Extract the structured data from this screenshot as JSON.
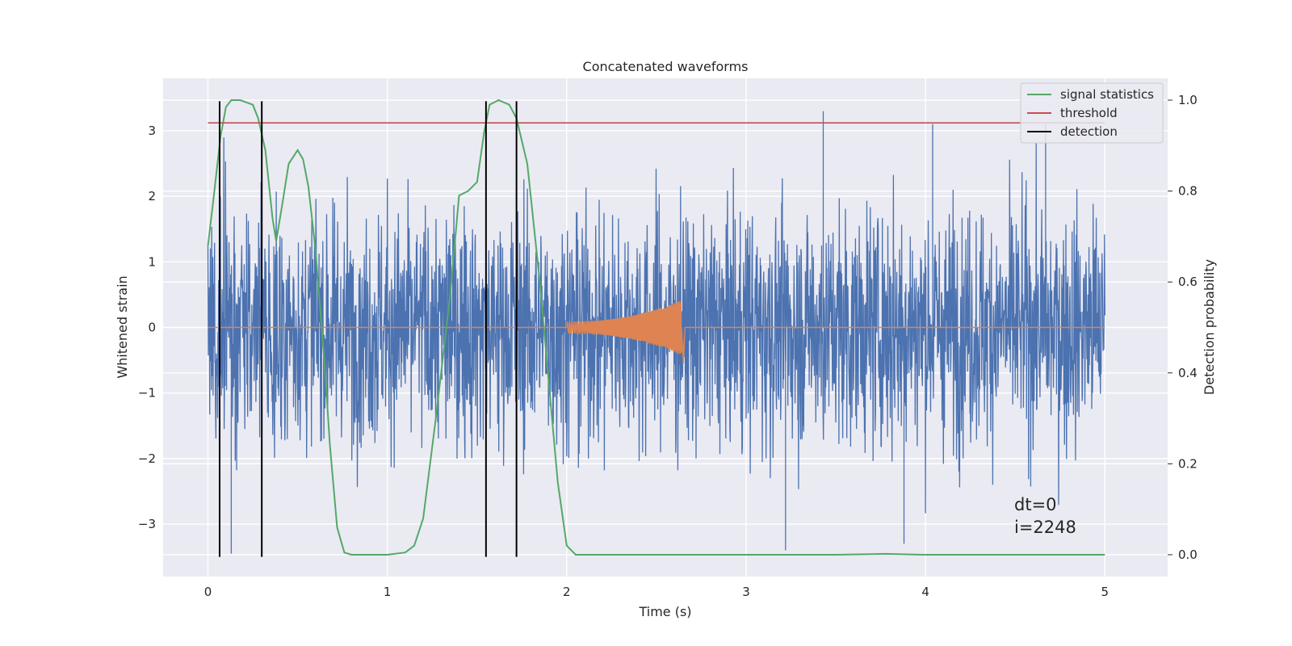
{
  "chart_data": {
    "type": "line",
    "title": "Concatenated waveforms",
    "xlabel": "Time (s)",
    "ylabel": "Whitened strain",
    "y2label": "Detection probability",
    "xlim": [
      -0.25,
      5.35
    ],
    "ylim": [
      -3.8,
      3.8
    ],
    "y2lim": [
      -0.048,
      1.048
    ],
    "x_ticks": [
      0,
      1,
      2,
      3,
      4,
      5
    ],
    "y_ticks": [
      -3,
      -2,
      -1,
      0,
      1,
      2,
      3
    ],
    "y2_ticks": [
      0.0,
      0.2,
      0.4,
      0.6,
      0.8,
      1.0
    ],
    "grid": true,
    "legend_position": "top-right",
    "legend": [
      "signal statistics",
      "threshold",
      "detection"
    ],
    "series": [
      {
        "name": "",
        "role": "whitened-strain",
        "color": "#4c72b0",
        "x_range": [
          0,
          5
        ],
        "approx_amplitude": 2.3,
        "peaks": [
          [
            3.43,
            3.3
          ],
          [
            4.04,
            3.1
          ],
          [
            4.67,
            3.1
          ],
          [
            3.22,
            -3.4
          ],
          [
            3.88,
            -3.3
          ],
          [
            0.13,
            -3.45
          ]
        ]
      },
      {
        "name": "",
        "role": "injected-waveform",
        "color": "#dd8452",
        "x_range": [
          0,
          5
        ],
        "chirp_start": 2.0,
        "chirp_end": 2.64,
        "chirp_peak_amplitude": 0.42
      },
      {
        "name": "signal statistics",
        "axis": "right",
        "color": "#55a868",
        "x": [
          0.0,
          0.03,
          0.07,
          0.1,
          0.13,
          0.18,
          0.25,
          0.28,
          0.32,
          0.36,
          0.38,
          0.41,
          0.45,
          0.5,
          0.53,
          0.56,
          0.6,
          0.65,
          0.68,
          0.72,
          0.76,
          0.8,
          1.0,
          1.1,
          1.15,
          1.2,
          1.27,
          1.35,
          1.4,
          1.45,
          1.5,
          1.54,
          1.57,
          1.62,
          1.68,
          1.72,
          1.78,
          1.85,
          1.9,
          1.95,
          2.0,
          2.05,
          3.5,
          3.78,
          4.0,
          5.0
        ],
        "y": [
          0.68,
          0.78,
          0.92,
          0.985,
          1.0,
          1.0,
          0.99,
          0.96,
          0.89,
          0.74,
          0.69,
          0.76,
          0.86,
          0.89,
          0.87,
          0.81,
          0.67,
          0.42,
          0.24,
          0.06,
          0.005,
          0.0,
          0.0,
          0.005,
          0.02,
          0.08,
          0.3,
          0.57,
          0.79,
          0.8,
          0.82,
          0.93,
          0.99,
          1.0,
          0.99,
          0.96,
          0.86,
          0.6,
          0.38,
          0.16,
          0.02,
          0.0,
          0.0,
          0.002,
          0.0,
          0.0
        ]
      },
      {
        "name": "threshold",
        "axis": "right",
        "color": "#c44e52",
        "x": [
          0,
          5
        ],
        "y": [
          0.95,
          0.95
        ]
      }
    ],
    "detections": [
      0.065,
      0.3,
      1.55,
      1.72
    ],
    "detection_color": "#000000",
    "detection_ylim": [
      -3.5,
      3.45
    ],
    "annotations": [
      "dt=0",
      "i=2248"
    ]
  }
}
